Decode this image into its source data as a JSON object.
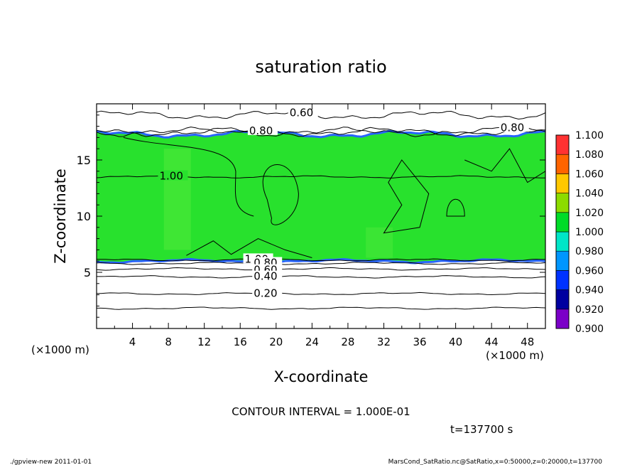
{
  "chart_data": {
    "type": "heatmap",
    "title": "saturation ratio",
    "xlabel": "X-coordinate",
    "ylabel": "Z-coordinate",
    "x_unit_left": "(×1000 m)",
    "x_unit_right": "(×1000 m)",
    "xlim": [
      0,
      50
    ],
    "ylim": [
      0,
      20
    ],
    "x_ticks": [
      4,
      8,
      12,
      16,
      20,
      24,
      28,
      32,
      36,
      40,
      44,
      48
    ],
    "y_ticks": [
      5,
      10,
      15
    ],
    "colorbar": {
      "levels": [
        "0.900",
        "0.920",
        "0.940",
        "0.960",
        "0.980",
        "1.000",
        "1.020",
        "1.040",
        "1.060",
        "1.080",
        "1.100"
      ],
      "colors": [
        "#7b00c8",
        "#0000a0",
        "#0032ff",
        "#0096ff",
        "#00e6c8",
        "#00dc28",
        "#8cdc00",
        "#ffc800",
        "#ff6400",
        "#ff3232",
        "#ff8c8c"
      ]
    },
    "fill_colors": {
      "saturated": "#28e12d",
      "supersaturated_patch": "#48e838",
      "subsaturated_edge": "#2864ff",
      "below": "#ffffff"
    },
    "saturated_layer": {
      "z_bottom": 6.0,
      "z_top": 17.3
    },
    "contours": [
      {
        "label": "0.60",
        "z": 19.0,
        "label_x": 21.5
      },
      {
        "label": "0.80",
        "z": 17.5,
        "label_x": 17.0
      },
      {
        "label": "0.80",
        "z": 17.5,
        "label_x": 45.0
      },
      {
        "label": "1.00",
        "z": 13.5,
        "label_x": 7.0
      },
      {
        "label": "1.00",
        "z": 6.1,
        "label_x": 16.5
      },
      {
        "label": "0.80",
        "z": 5.8,
        "label_x": 17.5
      },
      {
        "label": "0.60",
        "z": 5.3,
        "label_x": 17.5
      },
      {
        "label": "0.40",
        "z": 4.6,
        "label_x": 17.5
      },
      {
        "label": "0.20",
        "z": 3.1,
        "label_x": 17.5
      },
      {
        "label": "",
        "z": 1.8,
        "label_x": 0
      }
    ],
    "contour_interval": "CONTOUR INTERVAL = 1.000E-01",
    "time": "t=137700 s"
  },
  "footer": {
    "left": "./gpview-new  2011-01-01",
    "right": "MarsCond_SatRatio.nc@SatRatio,x=0:50000,z=0:20000,t=137700"
  }
}
